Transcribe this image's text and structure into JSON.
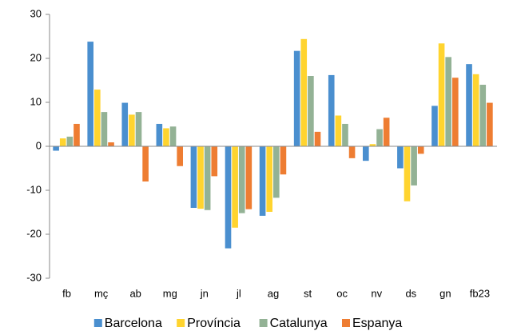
{
  "chart_data": {
    "type": "bar",
    "categories": [
      "fb",
      "mç",
      "ab",
      "mg",
      "jn",
      "jl",
      "ag",
      "st",
      "oc",
      "nv",
      "ds",
      "gn",
      "fb23"
    ],
    "series": [
      {
        "name": "Barcelona",
        "color": "#4a8fcf",
        "values": [
          -1,
          23.8,
          9.9,
          5.1,
          -14,
          -23.2,
          -15.8,
          21.7,
          16.2,
          -3.3,
          -5,
          9.2,
          18.7
        ]
      },
      {
        "name": "Província",
        "color": "#ffd42f",
        "values": [
          1.8,
          12.9,
          7.2,
          4.1,
          -14.2,
          -18.5,
          -14.9,
          24.4,
          7,
          0.5,
          -12.5,
          23.4,
          16.4
        ]
      },
      {
        "name": "Catalunya",
        "color": "#93b295",
        "values": [
          2.2,
          7.8,
          7.8,
          4.5,
          -14.5,
          -15.2,
          -11.7,
          16,
          5.1,
          3.9,
          -8.9,
          20.3,
          14
        ]
      },
      {
        "name": "Espanya",
        "color": "#ee7d32",
        "values": [
          5.1,
          0.9,
          -8,
          -4.5,
          -6.8,
          -14.3,
          -6.4,
          3.3,
          -2.7,
          6.5,
          -1.7,
          15.6,
          9.9
        ]
      }
    ],
    "ylim": [
      -30,
      30
    ],
    "yticks": [
      -30,
      -20,
      -10,
      0,
      10,
      20,
      30
    ],
    "grid": false,
    "legend": "bottom"
  }
}
